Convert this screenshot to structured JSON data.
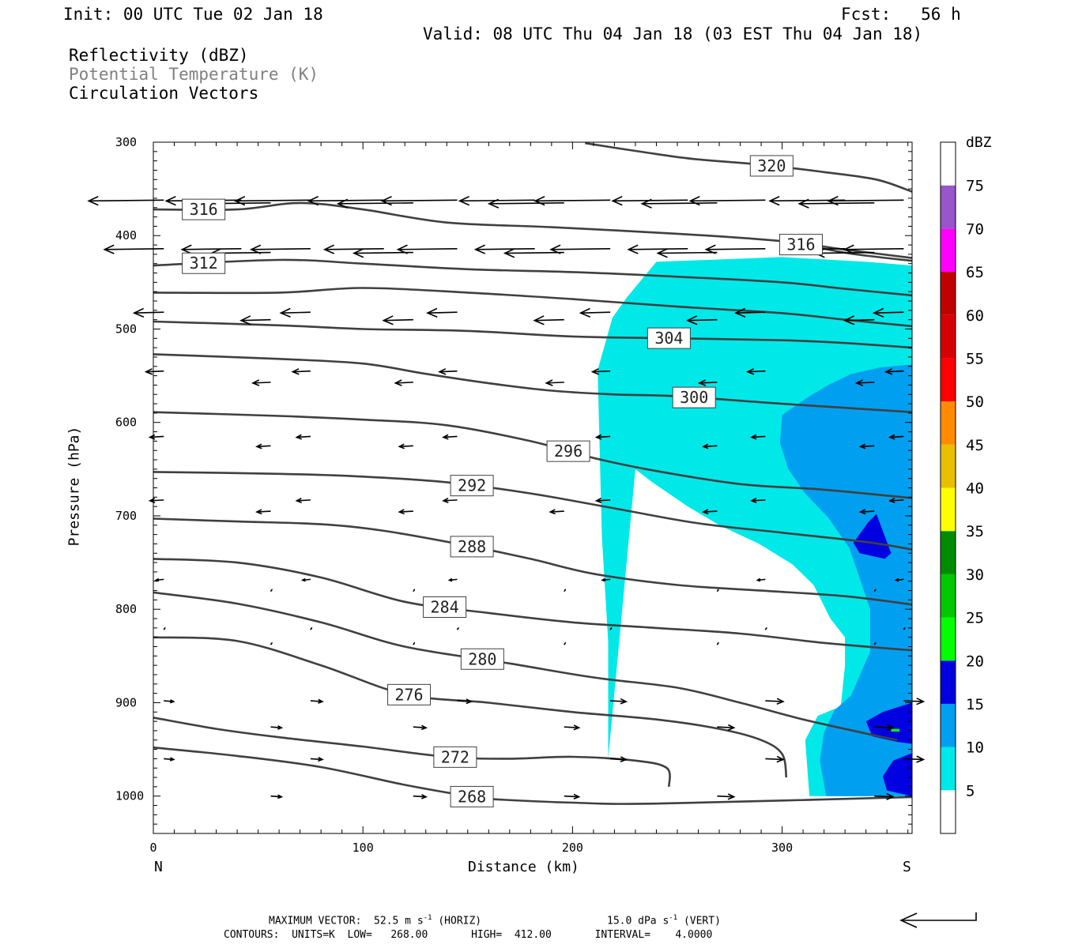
{
  "header": {
    "init": "Init: 00 UTC Tue 02 Jan 18",
    "fcst": "Fcst:   56 h",
    "valid": "Valid: 08 UTC Thu 04 Jan 18 (03 EST Thu 04 Jan 18)",
    "fields": [
      "Reflectivity (dBZ)",
      "Potential Temperature (K)",
      "Circulation Vectors"
    ]
  },
  "colors": {
    "dbz": [
      "#ffffff",
      "#00e8e8",
      "#009ff0",
      "#0000e0",
      "#00ff00",
      "#00c800",
      "#008c00",
      "#ffff00",
      "#e8c000",
      "#ff8c00",
      "#ff0000",
      "#d60000",
      "#c00000",
      "#ff00ff",
      "#9955cc"
    ],
    "contour": "#404040"
  },
  "chart_data": {
    "type": "cross-section",
    "xlabel": "Distance (km)",
    "ylabel": "Pressure (hPa)",
    "xlim": [
      0,
      362
    ],
    "ylim": [
      1040,
      300
    ],
    "xticks": [
      0,
      100,
      200,
      300
    ],
    "yticks": [
      300,
      400,
      500,
      600,
      700,
      800,
      900,
      1000
    ],
    "x_end_labels": {
      "left": "N",
      "right": "S"
    },
    "colorbar": {
      "unit": "dBZ",
      "levels": [
        5,
        10,
        15,
        20,
        25,
        30,
        35,
        40,
        45,
        50,
        55,
        60,
        65,
        70,
        75
      ],
      "range": [
        0,
        80
      ]
    },
    "reflectivity_regions": [
      {
        "level": 5,
        "polygon": [
          [
            217,
            960
          ],
          [
            217,
            835
          ],
          [
            214,
            722
          ],
          [
            212,
            544
          ],
          [
            219,
            488
          ],
          [
            226,
            466
          ],
          [
            240,
            428
          ],
          [
            300,
            423
          ],
          [
            340,
            428
          ],
          [
            362,
            432
          ],
          [
            362,
            1000
          ],
          [
            313,
            1000
          ],
          [
            311,
            940
          ],
          [
            317,
            914
          ],
          [
            328,
            904
          ],
          [
            330,
            860
          ],
          [
            330,
            830
          ],
          [
            323,
            810
          ],
          [
            315,
            774
          ],
          [
            305,
            752
          ],
          [
            289,
            730
          ],
          [
            270,
            710
          ],
          [
            255,
            690
          ],
          [
            238,
            664
          ],
          [
            230,
            650
          ]
        ]
      },
      {
        "level": 10,
        "polygon": [
          [
            362,
            538
          ],
          [
            347,
            541
          ],
          [
            333,
            548
          ],
          [
            322,
            560
          ],
          [
            313,
            572
          ],
          [
            300,
            592
          ],
          [
            299,
            622
          ],
          [
            303,
            650
          ],
          [
            311,
            676
          ],
          [
            322,
            702
          ],
          [
            332,
            734
          ],
          [
            336,
            760
          ],
          [
            342,
            800
          ],
          [
            342,
            845
          ],
          [
            333,
            892
          ],
          [
            325,
            908
          ],
          [
            320,
            932
          ],
          [
            318,
            962
          ],
          [
            321,
            1000
          ],
          [
            362,
            1000
          ]
        ]
      },
      {
        "level": 15,
        "polygon": [
          [
            345,
            698
          ],
          [
            341,
            707
          ],
          [
            334,
            729
          ],
          [
            337,
            740
          ],
          [
            349,
            746
          ],
          [
            352,
            740
          ],
          [
            349,
            722
          ]
        ]
      },
      {
        "level": 15,
        "polygon": [
          [
            362,
            900
          ],
          [
            348,
            910
          ],
          [
            340,
            920
          ],
          [
            343,
            936
          ],
          [
            355,
            942
          ],
          [
            362,
            944
          ]
        ]
      },
      {
        "level": 15,
        "polygon": [
          [
            362,
            954
          ],
          [
            353,
            962
          ],
          [
            348,
            979
          ],
          [
            350,
            994
          ],
          [
            362,
            1000
          ]
        ]
      },
      {
        "level": 20,
        "polygon": [
          [
            352,
            928
          ],
          [
            356,
            928
          ],
          [
            356,
            931
          ],
          [
            352,
            931
          ]
        ]
      }
    ],
    "theta_contours": [
      {
        "value": 320,
        "label": true,
        "points": [
          [
            206,
            301
          ],
          [
            235,
            311
          ],
          [
            258,
            318
          ],
          [
            290,
            324
          ],
          [
            320,
            332
          ],
          [
            345,
            340
          ],
          [
            362,
            353
          ]
        ]
      },
      {
        "value": 316,
        "label": true,
        "points": [
          [
            0,
            372
          ],
          [
            40,
            372
          ],
          [
            70,
            365
          ],
          [
            100,
            372
          ],
          [
            140,
            386
          ],
          [
            190,
            391
          ],
          [
            250,
            398
          ],
          [
            300,
            406
          ],
          [
            330,
            415
          ],
          [
            362,
            424
          ]
        ]
      },
      {
        "value": 316,
        "label": true,
        "points": [
          [
            300,
            406
          ],
          [
            315,
            412
          ],
          [
            335,
            420
          ],
          [
            362,
            427
          ]
        ]
      },
      {
        "value": 312,
        "label": true,
        "points": [
          [
            0,
            432
          ],
          [
            60,
            426
          ],
          [
            100,
            430
          ],
          [
            150,
            436
          ],
          [
            200,
            439
          ],
          [
            250,
            444
          ],
          [
            300,
            450
          ],
          [
            330,
            457
          ],
          [
            362,
            464
          ]
        ]
      },
      {
        "value": 308,
        "label": false,
        "points": [
          [
            0,
            461
          ],
          [
            60,
            461
          ],
          [
            100,
            456
          ],
          [
            150,
            461
          ],
          [
            200,
            468
          ],
          [
            250,
            476
          ],
          [
            300,
            483
          ],
          [
            330,
            490
          ],
          [
            362,
            497
          ]
        ]
      },
      {
        "value": 304,
        "label": true,
        "points": [
          [
            0,
            492
          ],
          [
            60,
            496
          ],
          [
            100,
            500
          ],
          [
            150,
            502
          ],
          [
            200,
            508
          ],
          [
            250,
            510
          ],
          [
            300,
            512
          ],
          [
            330,
            515
          ],
          [
            362,
            520
          ]
        ]
      },
      {
        "value": 300,
        "label": true,
        "points": [
          [
            0,
            527
          ],
          [
            60,
            532
          ],
          [
            100,
            537
          ],
          [
            130,
            548
          ],
          [
            160,
            558
          ],
          [
            190,
            566
          ],
          [
            220,
            570
          ],
          [
            250,
            572
          ],
          [
            300,
            580
          ],
          [
            362,
            589
          ]
        ]
      },
      {
        "value": 296,
        "label": true,
        "points": [
          [
            0,
            589
          ],
          [
            60,
            593
          ],
          [
            100,
            597
          ],
          [
            140,
            603
          ],
          [
            180,
            620
          ],
          [
            210,
            638
          ],
          [
            240,
            652
          ],
          [
            280,
            666
          ],
          [
            320,
            672
          ],
          [
            362,
            681
          ]
        ]
      },
      {
        "value": 292,
        "label": true,
        "points": [
          [
            0,
            653
          ],
          [
            60,
            655
          ],
          [
            100,
            658
          ],
          [
            140,
            664
          ],
          [
            180,
            676
          ],
          [
            220,
            692
          ],
          [
            260,
            708
          ],
          [
            300,
            718
          ],
          [
            340,
            728
          ],
          [
            362,
            736
          ]
        ]
      },
      {
        "value": 288,
        "label": true,
        "points": [
          [
            0,
            703
          ],
          [
            40,
            706
          ],
          [
            80,
            709
          ],
          [
            110,
            716
          ],
          [
            150,
            732
          ],
          [
            180,
            746
          ],
          [
            210,
            762
          ],
          [
            250,
            774
          ],
          [
            290,
            780
          ],
          [
            330,
            786
          ],
          [
            362,
            795
          ]
        ]
      },
      {
        "value": 284,
        "label": true,
        "points": [
          [
            0,
            746
          ],
          [
            40,
            750
          ],
          [
            80,
            766
          ],
          [
            120,
            792
          ],
          [
            160,
            804
          ],
          [
            200,
            814
          ],
          [
            240,
            820
          ],
          [
            280,
            826
          ],
          [
            320,
            836
          ],
          [
            362,
            844
          ]
        ]
      },
      {
        "value": 280,
        "label": true,
        "points": [
          [
            0,
            782
          ],
          [
            40,
            794
          ],
          [
            80,
            814
          ],
          [
            120,
            840
          ],
          [
            170,
            858
          ],
          [
            210,
            873
          ],
          [
            250,
            884
          ],
          [
            280,
            900
          ],
          [
            310,
            918
          ],
          [
            340,
            933
          ],
          [
            355,
            940
          ]
        ]
      },
      {
        "value": 276,
        "label": true,
        "points": [
          [
            0,
            830
          ],
          [
            40,
            834
          ],
          [
            80,
            860
          ],
          [
            120,
            891
          ],
          [
            160,
            900
          ],
          [
            200,
            910
          ],
          [
            240,
            918
          ],
          [
            270,
            928
          ],
          [
            290,
            940
          ],
          [
            300,
            955
          ],
          [
            302,
            980
          ]
        ]
      },
      {
        "value": 272,
        "label": true,
        "points": [
          [
            0,
            916
          ],
          [
            30,
            928
          ],
          [
            60,
            937
          ],
          [
            100,
            947
          ],
          [
            140,
            958
          ],
          [
            170,
            960
          ],
          [
            200,
            958
          ],
          [
            230,
            962
          ],
          [
            245,
            970
          ],
          [
            246,
            990
          ]
        ]
      },
      {
        "value": 268,
        "label": true,
        "points": [
          [
            0,
            948
          ],
          [
            40,
            957
          ],
          [
            80,
            969
          ],
          [
            120,
            988
          ],
          [
            150,
            1000
          ],
          [
            160,
            1003
          ],
          [
            200,
            1007
          ],
          [
            240,
            1008
          ],
          [
            362,
            1001
          ]
        ]
      }
    ],
    "circulation_vectors": [
      {
        "x": 0,
        "p": 360,
        "u": -30,
        "w": 0
      }
    ],
    "annotation": {
      "max_vector": "MAXIMUM VECTOR:  52.5 m s",
      "horiz_unit": "-1",
      "horiz_tail": " (HORIZ)",
      "vert_value": "15.0 dPa s",
      "vert_unit": "-1",
      "vert_tail": " (VERT)",
      "contours": "CONTOURS:  UNITS=K  LOW=   268.00       HIGH=  412.00       INTERVAL=    4.0000"
    }
  }
}
